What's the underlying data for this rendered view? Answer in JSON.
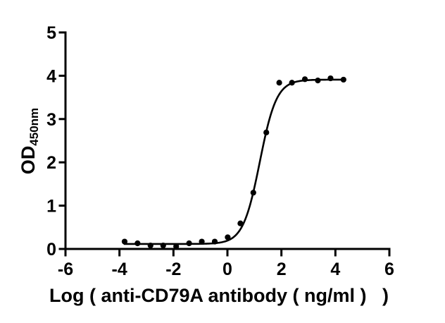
{
  "figure": {
    "background": "#ffffff",
    "axis_color": "#000000",
    "text_color": "#000000",
    "point_color": "#000000",
    "curve_color": "#000000"
  },
  "chart_data": {
    "type": "scatter",
    "title": "",
    "xlabel": "Log ( anti-CD79A antibody ( ng/ml )   )",
    "ylabel": "OD",
    "ylabel_subscript": "450nm",
    "xlim": [
      -6,
      6
    ],
    "ylim": [
      0,
      5
    ],
    "xticks": [
      -6,
      -4,
      -2,
      0,
      2,
      4,
      6
    ],
    "yticks": [
      0,
      1,
      2,
      3,
      4,
      5
    ],
    "grid": false,
    "legend": "none",
    "points": {
      "marker": "filled-circle",
      "x": [
        -3.81,
        -3.33,
        -2.85,
        -2.38,
        -1.9,
        -1.42,
        -0.95,
        -0.47,
        0.01,
        0.48,
        0.96,
        1.44,
        1.92,
        2.39,
        2.87,
        3.35,
        3.82,
        4.3
      ],
      "y": [
        0.17,
        0.13,
        0.08,
        0.08,
        0.06,
        0.13,
        0.17,
        0.17,
        0.27,
        0.59,
        1.3,
        2.69,
        3.84,
        3.84,
        3.92,
        3.89,
        3.94,
        3.91
      ]
    },
    "fit_curve": {
      "model": "4PL-sigmoid",
      "bottom": 0.115,
      "top": 3.91,
      "log_ec50": 1.2,
      "hill_slope": 1.4,
      "x_start": -3.81,
      "x_end": 4.3
    }
  }
}
